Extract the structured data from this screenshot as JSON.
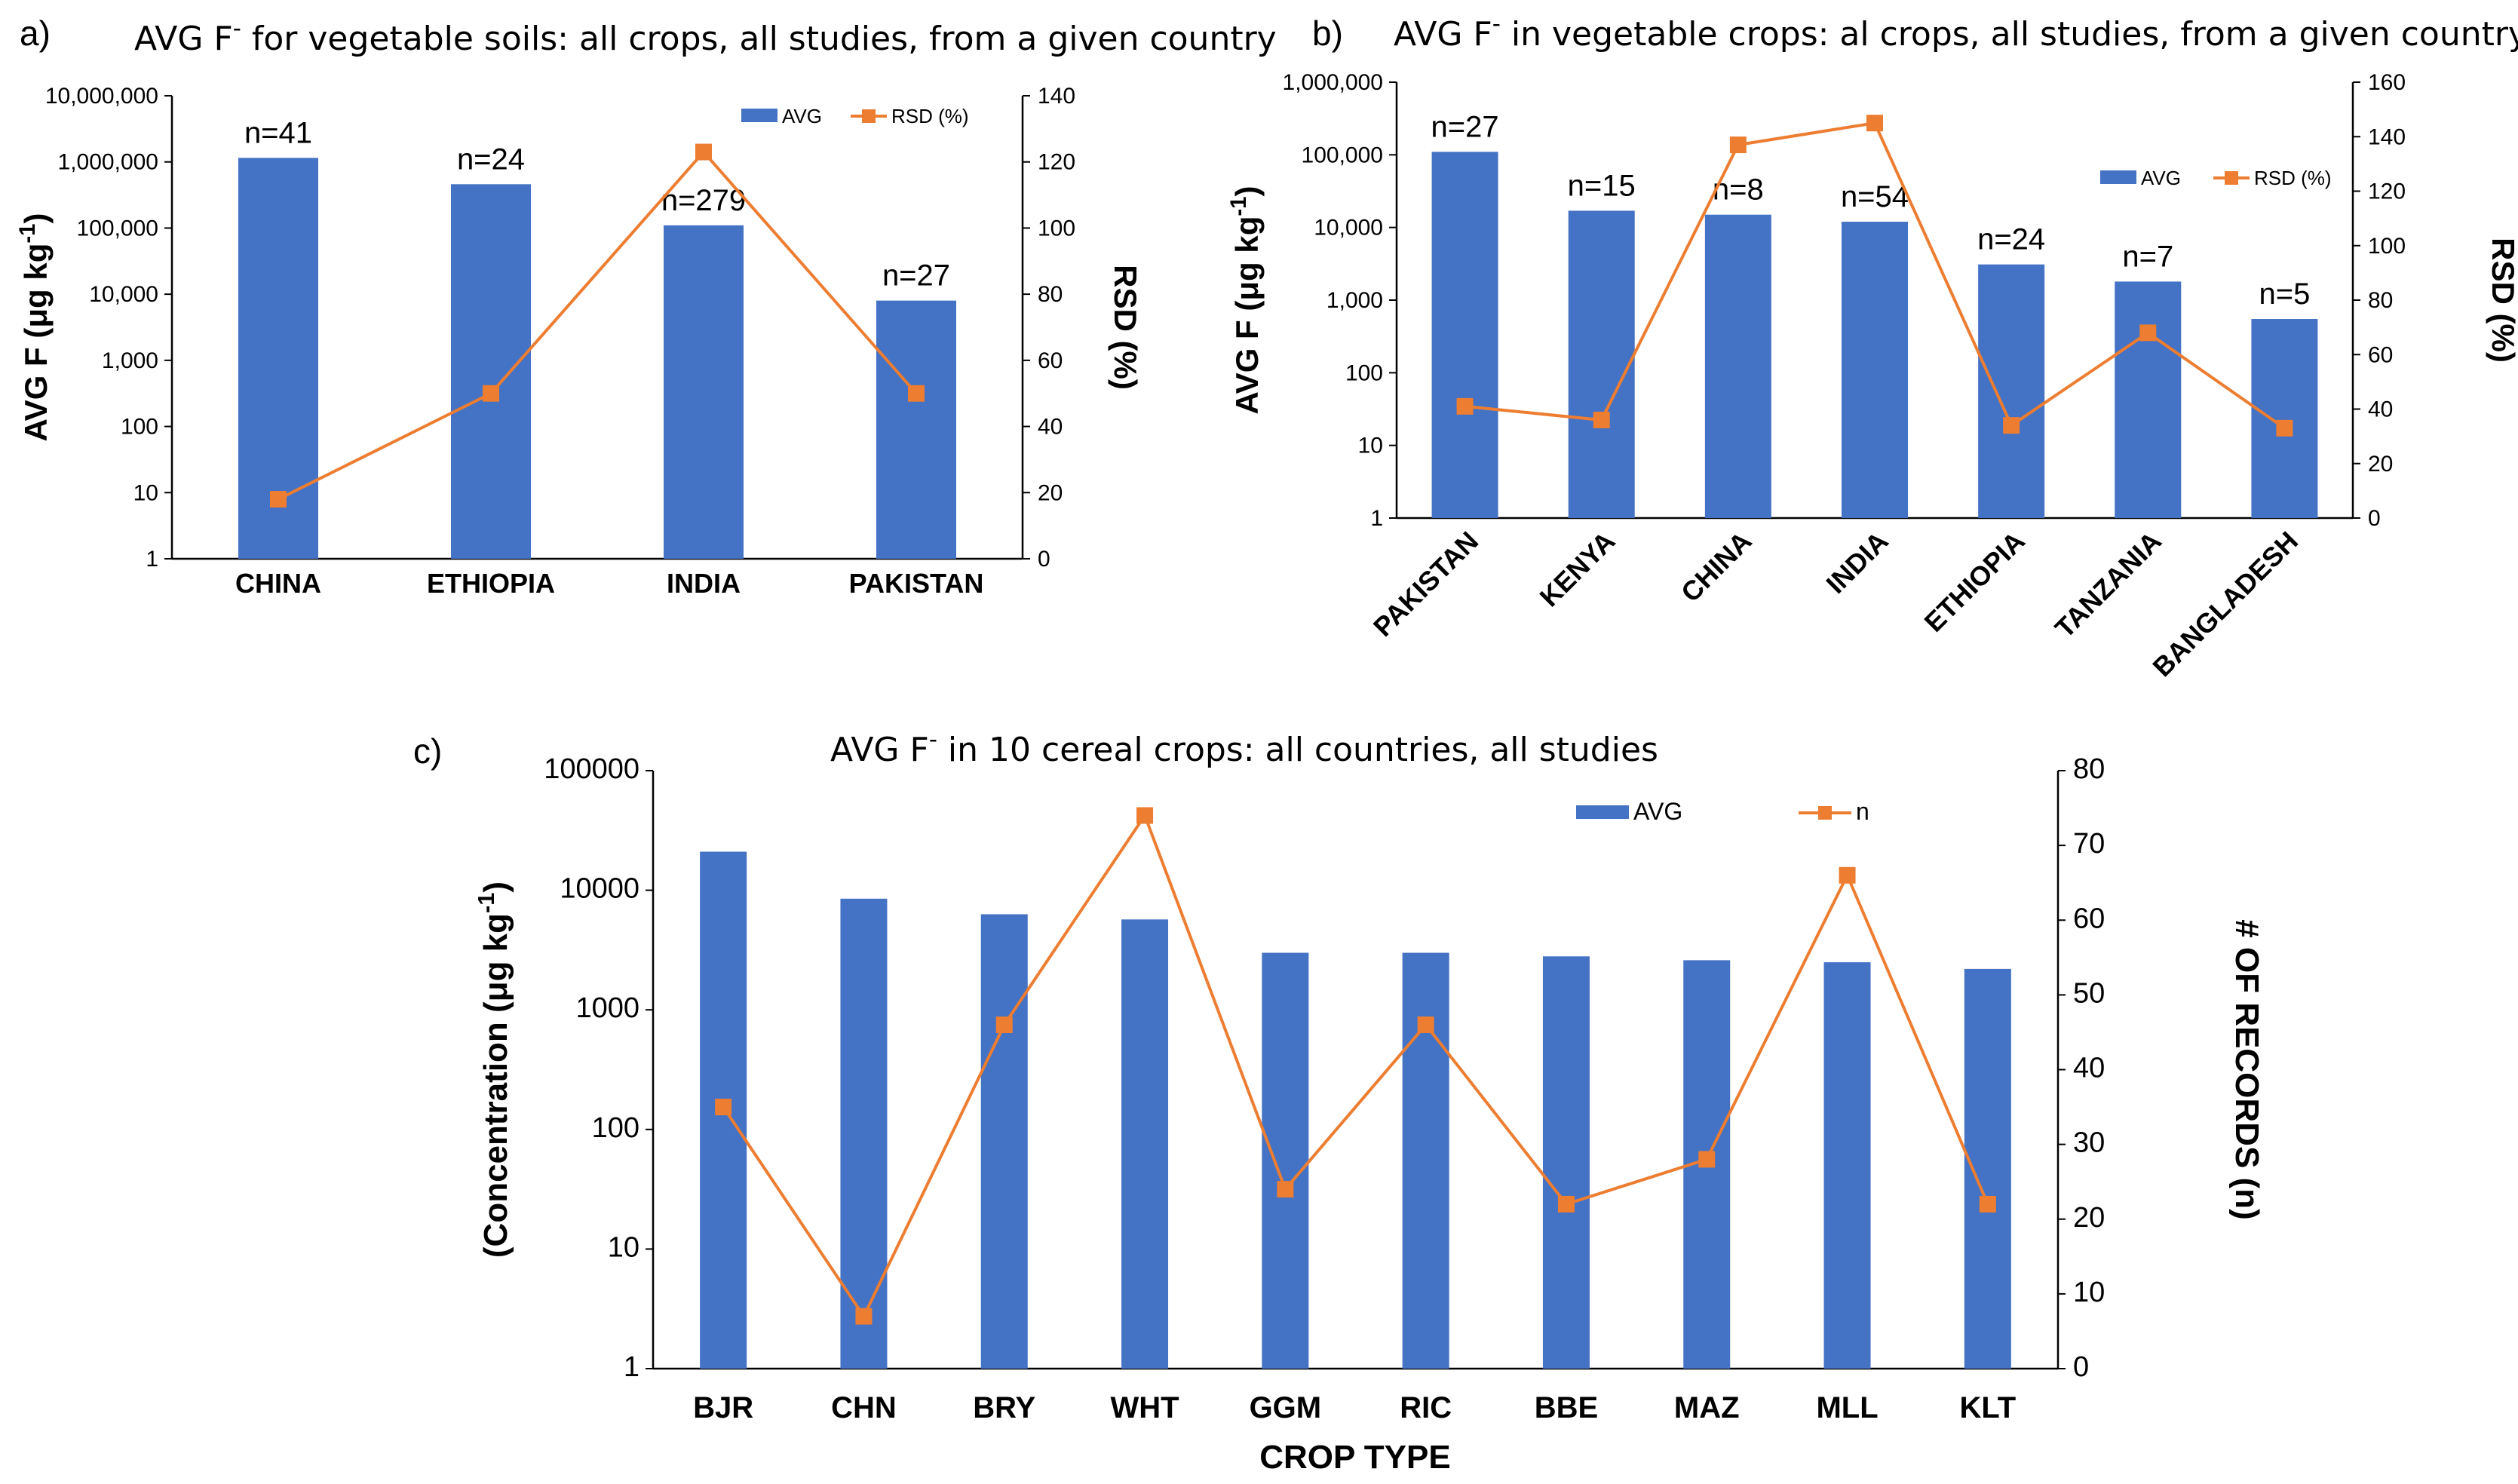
{
  "chart_data": [
    {
      "id": "a",
      "panel_label": "a)",
      "type": "bar+line",
      "title": "AVG F⁻ for vegetable soils: all crops, all studies, from a given country",
      "categories": [
        "CHINA",
        "ETHIOPIA",
        "INDIA",
        "PAKISTAN"
      ],
      "series": [
        {
          "name": "AVG",
          "kind": "bar",
          "axis": "left",
          "color": "#4472C4",
          "values": [
            1150000,
            460000,
            110000,
            8000
          ]
        },
        {
          "name": "RSD (%)",
          "kind": "line",
          "axis": "right",
          "color": "#ED7D31",
          "values": [
            18,
            50,
            123,
            50
          ]
        }
      ],
      "bar_labels": [
        "n=41",
        "n=24",
        "n=279",
        "n=27"
      ],
      "ylabel": "AVG F (μg kg⁻¹)",
      "y2label": "RSD (%)",
      "yscale": "log",
      "ylim": [
        1,
        10000000
      ],
      "y_ticks": [
        "1",
        "10",
        "100",
        "1,000",
        "10,000",
        "100,000",
        "1,000,000",
        "10,000,000"
      ],
      "y2lim": [
        0,
        140
      ],
      "y2_ticks": [
        "0",
        "20",
        "40",
        "60",
        "80",
        "100",
        "120",
        "140"
      ],
      "legend": "top-right"
    },
    {
      "id": "b",
      "panel_label": "b)",
      "type": "bar+line",
      "title": "AVG F⁻ in vegetable crops: al crops, all studies, from a given country",
      "categories": [
        "PAKISTAN",
        "KENYA",
        "CHINA",
        "INDIA",
        "ETHIOPIA",
        "TANZANIA",
        "BANGLADESH"
      ],
      "series": [
        {
          "name": "AVG",
          "kind": "bar",
          "axis": "left",
          "color": "#4472C4",
          "values": [
            110000,
            17000,
            15000,
            12000,
            3100,
            1800,
            550
          ]
        },
        {
          "name": "RSD (%)",
          "kind": "line",
          "axis": "right",
          "color": "#ED7D31",
          "values": [
            41,
            36,
            137,
            145,
            34,
            68,
            33
          ]
        }
      ],
      "bar_labels": [
        "n=27",
        "n=15",
        "n=8",
        "n=54",
        "n=24",
        "n=7",
        "n=5"
      ],
      "ylabel": "AVG F (μg kg⁻¹)",
      "y2label": "RSD (%)",
      "yscale": "log",
      "ylim": [
        1,
        1000000
      ],
      "y_ticks": [
        "1",
        "10",
        "100",
        "1,000",
        "10,000",
        "100,000",
        "1,000,000"
      ],
      "y2lim": [
        0,
        160
      ],
      "y2_ticks": [
        "0",
        "20",
        "40",
        "60",
        "80",
        "100",
        "120",
        "140",
        "160"
      ],
      "legend": "top-right"
    },
    {
      "id": "c",
      "panel_label": "c)",
      "type": "bar+line",
      "title": "AVG F⁻ in 10 cereal crops: all countries, all studies",
      "categories": [
        "BJR",
        "CHN",
        "BRY",
        "WHT",
        "GGM",
        "RIC",
        "BBE",
        "MAZ",
        "MLL",
        "KLT"
      ],
      "series": [
        {
          "name": "AVG",
          "kind": "bar",
          "axis": "left",
          "color": "#4472C4",
          "values": [
            21000,
            8500,
            6300,
            5700,
            3000,
            3000,
            2800,
            2600,
            2500,
            2200
          ]
        },
        {
          "name": "n",
          "kind": "line",
          "axis": "right",
          "color": "#ED7D31",
          "values": [
            35,
            7,
            46,
            74,
            24,
            46,
            22,
            28,
            66,
            22
          ]
        }
      ],
      "xlabel": "CROP TYPE",
      "ylabel": "(Concentration (μg kg⁻¹)",
      "y2label": "# OF RECORDS (n)",
      "yscale": "log",
      "ylim": [
        1,
        100000
      ],
      "y_ticks": [
        "1",
        "10",
        "100",
        "1000",
        "10000",
        "100000"
      ],
      "y2lim": [
        0,
        80
      ],
      "y2_ticks": [
        "0",
        "10",
        "20",
        "30",
        "40",
        "50",
        "60",
        "70",
        "80"
      ],
      "legend": "top-right"
    }
  ]
}
